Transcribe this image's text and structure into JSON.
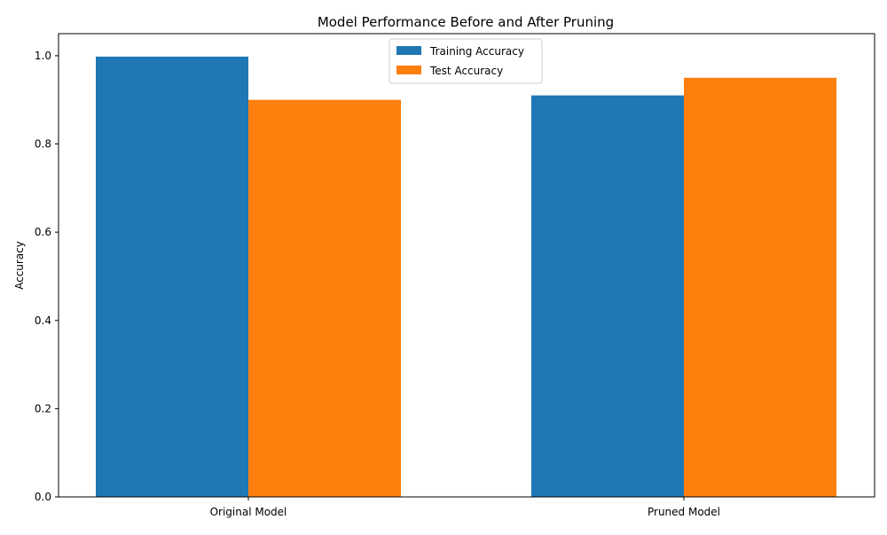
{
  "chart_data": {
    "type": "bar",
    "title": "Model Performance Before and After Pruning",
    "xlabel": "",
    "ylabel": "Accuracy",
    "categories": [
      "Original Model",
      "Pruned Model"
    ],
    "series": [
      {
        "name": "Training Accuracy",
        "values": [
          0.998,
          0.91
        ],
        "color": "#1f77b4"
      },
      {
        "name": "Test Accuracy",
        "values": [
          0.9,
          0.95
        ],
        "color": "#ff7f0e"
      }
    ],
    "ylim": [
      0,
      1.05
    ],
    "yticks": [
      0.0,
      0.2,
      0.4,
      0.6,
      0.8,
      1.0
    ],
    "ytick_labels": [
      "0.0",
      "0.2",
      "0.4",
      "0.6",
      "0.8",
      "1.0"
    ],
    "grid": false,
    "legend_position": "top-center"
  }
}
